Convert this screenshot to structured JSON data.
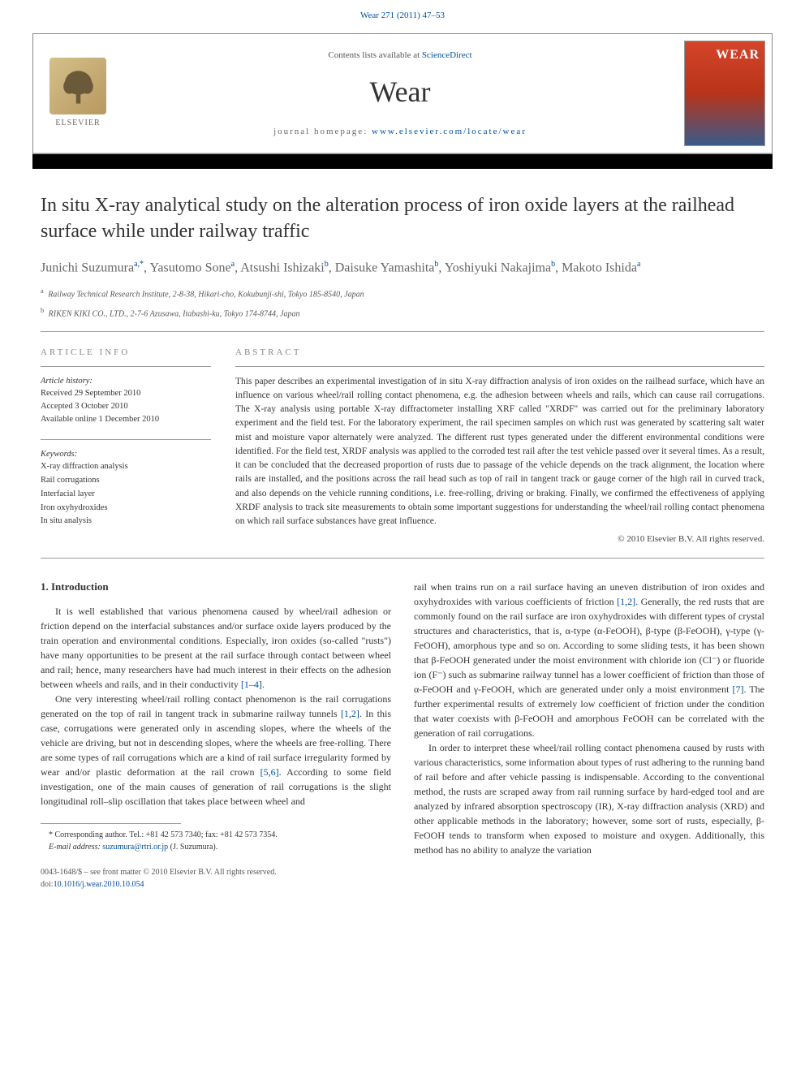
{
  "header": {
    "citation_link": "Wear 271 (2011) 47–53",
    "contents_line_prefix": "Contents lists available at ",
    "contents_line_link": "ScienceDirect",
    "journal_name": "Wear",
    "homepage_label": "journal homepage: ",
    "homepage_url": "www.elsevier.com/locate/wear",
    "publisher": "ELSEVIER",
    "cover_title": "WEAR"
  },
  "article": {
    "title": "In situ X-ray analytical study on the alteration process of iron oxide layers at the railhead surface while under railway traffic",
    "authors_html": "Junichi Suzumura<sup>a,*</sup>, Yasutomo Sone<sup>a</sup>, Atsushi Ishizaki<sup>b</sup>, Daisuke Yamashita<sup>b</sup>, Yoshiyuki Nakajima<sup>b</sup>, Makoto Ishida<sup>a</sup>",
    "affiliations": [
      {
        "sup": "a",
        "text": "Railway Technical Research Institute, 2-8-38, Hikari-cho, Kokubunji-shi, Tokyo 185-8540, Japan"
      },
      {
        "sup": "b",
        "text": "RIKEN KIKI CO., LTD., 2-7-6 Azusawa, Itabashi-ku, Tokyo 174-8744, Japan"
      }
    ]
  },
  "info": {
    "heading": "ARTICLE INFO",
    "history_label": "Article history:",
    "received": "Received 29 September 2010",
    "accepted": "Accepted 3 October 2010",
    "online": "Available online 1 December 2010",
    "keywords_label": "Keywords:",
    "keywords": [
      "X-ray diffraction analysis",
      "Rail corrugations",
      "Interfacial layer",
      "Iron oxyhydroxides",
      "In situ analysis"
    ]
  },
  "abstract": {
    "heading": "ABSTRACT",
    "text": "This paper describes an experimental investigation of in situ X-ray diffraction analysis of iron oxides on the railhead surface, which have an influence on various wheel/rail rolling contact phenomena, e.g. the adhesion between wheels and rails, which can cause rail corrugations. The X-ray analysis using portable X-ray diffractometer installing XRF called \"XRDF\" was carried out for the preliminary laboratory experiment and the field test. For the laboratory experiment, the rail specimen samples on which rust was generated by scattering salt water mist and moisture vapor alternately were analyzed. The different rust types generated under the different environmental conditions were identified. For the field test, XRDF analysis was applied to the corroded test rail after the test vehicle passed over it several times. As a result, it can be concluded that the decreased proportion of rusts due to passage of the vehicle depends on the track alignment, the location where rails are installed, and the positions across the rail head such as top of rail in tangent track or gauge corner of the high rail in curved track, and also depends on the vehicle running conditions, i.e. free-rolling, driving or braking. Finally, we confirmed the effectiveness of applying XRDF analysis to track site measurements to obtain some important suggestions for understanding the wheel/rail rolling contact phenomena on which rail surface substances have great influence.",
    "copyright": "© 2010 Elsevier B.V. All rights reserved."
  },
  "body": {
    "section_heading": "1. Introduction",
    "left_paragraphs": [
      "It is well established that various phenomena caused by wheel/rail adhesion or friction depend on the interfacial substances and/or surface oxide layers produced by the train operation and environmental conditions. Especially, iron oxides (so-called \"rusts\") have many opportunities to be present at the rail surface through contact between wheel and rail; hence, many researchers have had much interest in their effects on the adhesion between wheels and rails, and in their conductivity [1–4].",
      "One very interesting wheel/rail rolling contact phenomenon is the rail corrugations generated on the top of rail in tangent track in submarine railway tunnels [1,2]. In this case, corrugations were generated only in ascending slopes, where the wheels of the vehicle are driving, but not in descending slopes, where the wheels are free-rolling. There are some types of rail corrugations which are a kind of rail surface irregularity formed by wear and/or plastic deformation at the rail crown [5,6]. According to some field investigation, one of the main causes of generation of rail corrugations is the slight longitudinal roll–slip oscillation that takes place between wheel and"
    ],
    "right_paragraphs": [
      "rail when trains run on a rail surface having an uneven distribution of iron oxides and oxyhydroxides with various coefficients of friction [1,2]. Generally, the red rusts that are commonly found on the rail surface are iron oxyhydroxides with different types of crystal structures and characteristics, that is, α-type (α-FeOOH), β-type (β-FeOOH), γ-type (γ-FeOOH), amorphous type and so on. According to some sliding tests, it has been shown that β-FeOOH generated under the moist environment with chloride ion (Cl⁻) or fluoride ion (F⁻) such as submarine railway tunnel has a lower coefficient of friction than those of α-FeOOH and γ-FeOOH, which are generated under only a moist environment [7]. The further experimental results of extremely low coefficient of friction under the condition that water coexists with β-FeOOH and amorphous FeOOH can be correlated with the generation of rail corrugations.",
      "In order to interpret these wheel/rail rolling contact phenomena caused by rusts with various characteristics, some information about types of rust adhering to the running band of rail before and after vehicle passing is indispensable. According to the conventional method, the rusts are scraped away from rail running surface by hard-edged tool and are analyzed by infrared absorption spectroscopy (IR), X-ray diffraction analysis (XRD) and other applicable methods in the laboratory; however, some sort of rusts, especially, β-FeOOH tends to transform when exposed to moisture and oxygen. Additionally, this method has no ability to analyze the variation"
    ]
  },
  "footnote": {
    "corresponding": "* Corresponding author. Tel.: +81 42 573 7340; fax: +81 42 573 7354.",
    "email_label": "E-mail address: ",
    "email": "suzumura@rtri.or.jp",
    "email_suffix": " (J. Suzumura)."
  },
  "footer": {
    "line1": "0043-1648/$ – see front matter © 2010 Elsevier B.V. All rights reserved.",
    "doi_label": "doi:",
    "doi": "10.1016/j.wear.2010.10.054"
  },
  "colors": {
    "link": "#0050a0",
    "text": "#333",
    "muted": "#666",
    "rule": "#999"
  }
}
